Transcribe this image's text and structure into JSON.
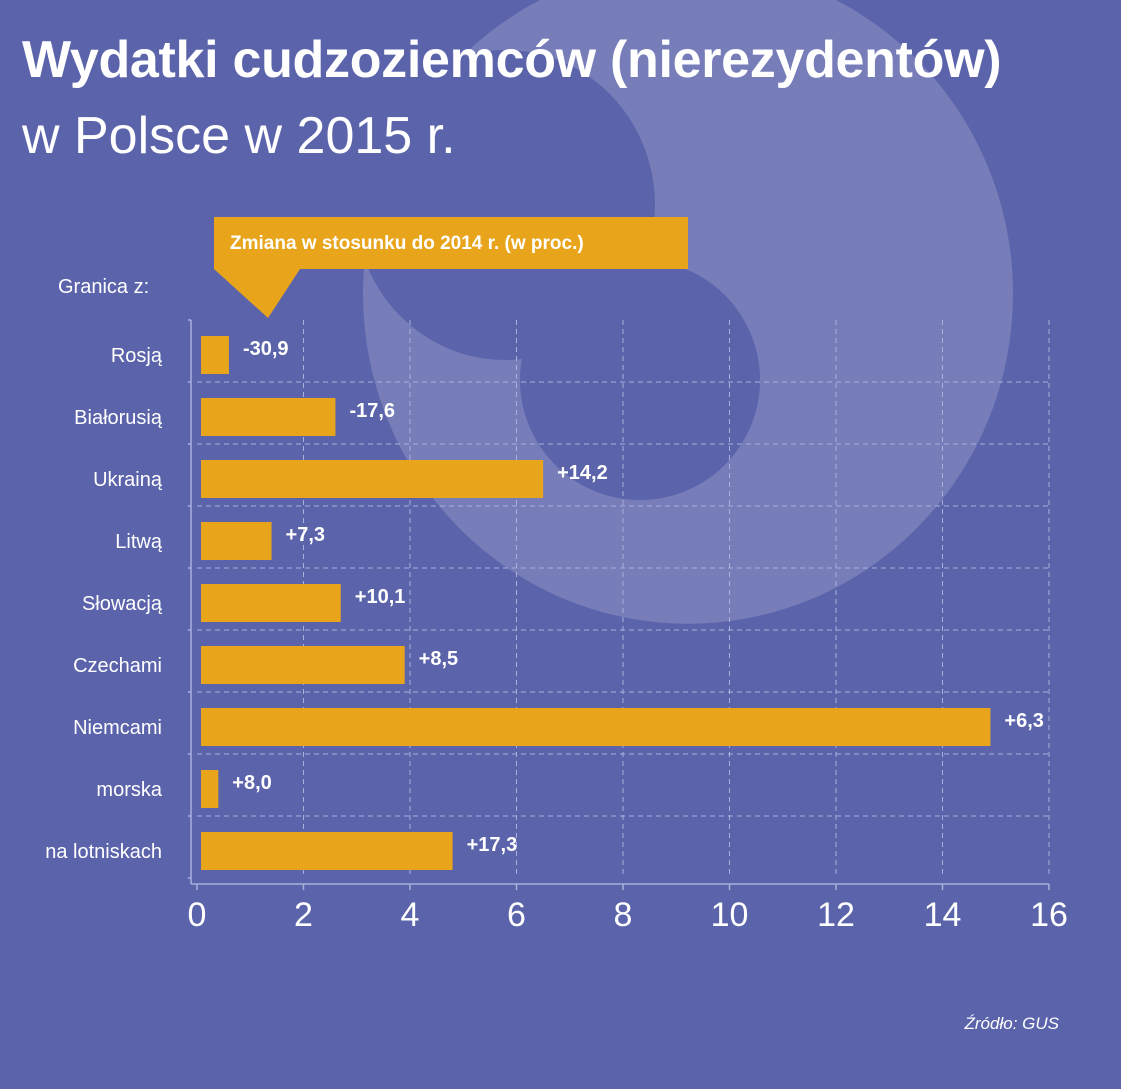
{
  "header": {
    "title": "Wydatki cudzoziemców (nierezydentów)",
    "subtitle": "w Polsce w 2015 r."
  },
  "callout": {
    "label": "Zmiana w stosunku do 2014 r. (w proc.)"
  },
  "source": "Źródło: GUS",
  "colors": {
    "background": "#5b63ab",
    "bar": "#e8a51c",
    "text": "#ffffff",
    "grid": "#aab0dc"
  },
  "chart_data": {
    "type": "bar",
    "orientation": "horizontal",
    "category_header": "Granica z:",
    "categories": [
      "Rosją",
      "Białorusią",
      "Ukrainą",
      "Litwą",
      "Słowacją",
      "Czechami",
      "Niemcami",
      "morska",
      "na lotniskach"
    ],
    "values": [
      0.6,
      2.6,
      6.5,
      1.4,
      2.7,
      3.9,
      14.9,
      0.4,
      4.8
    ],
    "data_labels": [
      "-30,9",
      "-17,6",
      "+14,2",
      "+7,3",
      "+10,1",
      "+8,5",
      "+6,3",
      "+8,0",
      "+17,3"
    ],
    "xlim": [
      0,
      16
    ],
    "xticks": [
      0,
      2,
      4,
      6,
      8,
      10,
      12,
      14,
      16
    ],
    "xlabel": "",
    "ylabel": "",
    "grid": true
  }
}
